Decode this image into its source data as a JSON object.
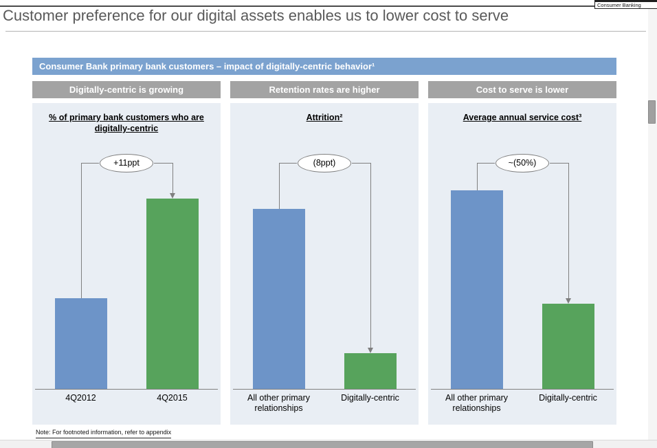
{
  "window": {
    "tab_label": "Consumer Banking"
  },
  "slide": {
    "title": "Customer preference for our digital assets enables us to lower cost to serve",
    "banner": "Consumer Bank primary bank customers – impact of digitally-centric behavior¹",
    "panels": [
      {
        "header": "Digitally-centric is growing"
      },
      {
        "header": "Retention rates are higher"
      },
      {
        "header": "Cost to serve is lower"
      }
    ],
    "footnote": "Note: For footnoted information, refer to appendix"
  },
  "chart_data": [
    {
      "type": "bar",
      "title": "% of primary bank customers who are digitally-centric",
      "categories": [
        "4Q2012",
        "4Q2015"
      ],
      "values": [
        10,
        21
      ],
      "annotation": "+11ppt",
      "bar_colors": [
        "#6d94c8",
        "#57a35c"
      ],
      "ylim": [
        0,
        27
      ],
      "legend": "none",
      "grid": "off"
    },
    {
      "type": "bar",
      "title": "Attrition²",
      "categories": [
        "All other primary relationships",
        "Digitally-centric"
      ],
      "values": [
        10,
        2
      ],
      "annotation": "(8ppt)",
      "bar_colors": [
        "#6d94c8",
        "#57a35c"
      ],
      "ylim": [
        0,
        13.6
      ],
      "legend": "none",
      "grid": "off"
    },
    {
      "type": "bar",
      "title": "Average annual service cost³",
      "categories": [
        "All other primary relationships",
        "Digitally-centric"
      ],
      "values": [
        100,
        43
      ],
      "annotation": "~(50%)",
      "bar_colors": [
        "#6d94c8",
        "#57a35c"
      ],
      "ylim": [
        0,
        123
      ],
      "legend": "none",
      "grid": "off"
    }
  ]
}
